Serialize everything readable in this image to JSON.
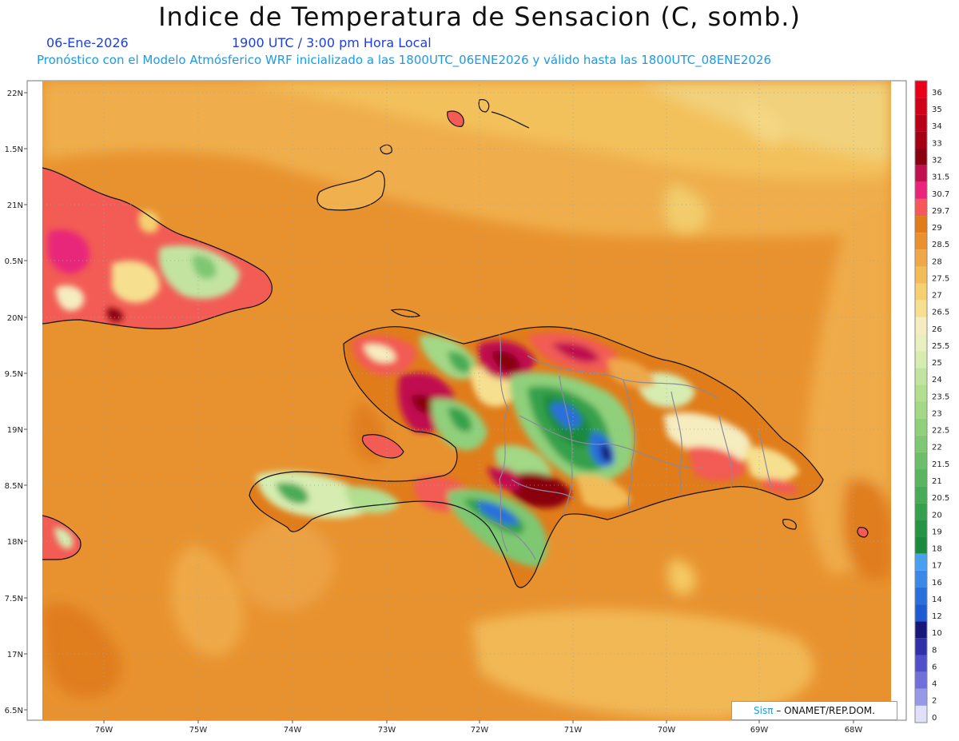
{
  "header": {
    "title": "Indice de Temperatura de Sensacion (C, somb.)",
    "date": "06-Ene-2026",
    "time": "1900 UTC / 3:00 pm Hora Local",
    "subtitle": "Pronóstico con el Modelo Atmósferico WRF inicializado a las 1800UTC_06ENE2026 y válido hasta las  1800UTC_08ENE2026"
  },
  "axes": {
    "lat_labels": [
      "22N",
      "1.5N",
      "21N",
      "0.5N",
      "20N",
      "9.5N",
      "19N",
      "8.5N",
      "18N",
      "7.5N",
      "17N",
      "6.5N"
    ],
    "lon_labels": [
      "76W",
      "75W",
      "74W",
      "73W",
      "72W",
      "71W",
      "70W",
      "69W",
      "68W"
    ]
  },
  "legend": {
    "levels": [
      "36",
      "35",
      "34",
      "33",
      "32",
      "31.5",
      "30.7",
      "29.7",
      "29",
      "28.5",
      "28",
      "27.5",
      "27",
      "26.5",
      "26",
      "25.5",
      "25",
      "24",
      "23.5",
      "23",
      "22.5",
      "22",
      "21.5",
      "21",
      "20.5",
      "20",
      "19",
      "18",
      "17",
      "16",
      "14",
      "12",
      "10",
      "8",
      "6",
      "4",
      "2",
      "0"
    ],
    "colors": [
      "#e8001a",
      "#d00018",
      "#b80016",
      "#a30014",
      "#8a0010",
      "#c01050",
      "#e8257a",
      "#f4585a",
      "#e07c1a",
      "#ea9030",
      "#efa848",
      "#f2bc58",
      "#f5d070",
      "#f6df8e",
      "#f5ecc0",
      "#e8f0c0",
      "#d6ecb0",
      "#c2e4a0",
      "#b2de90",
      "#a2d886",
      "#90d07c",
      "#7ec872",
      "#6cbf68",
      "#5ab55e",
      "#48ab55",
      "#36a04c",
      "#259544",
      "#1a8a3c",
      "#4aa0f0",
      "#3a88e8",
      "#2a70dc",
      "#1e5ad0",
      "#181878",
      "#3030a8",
      "#5050c8",
      "#7070d8",
      "#9898e8",
      "#e0e0f8"
    ]
  },
  "credit": {
    "brand": "Sisπ",
    "text": " – ONAMET/REP.DOM."
  }
}
